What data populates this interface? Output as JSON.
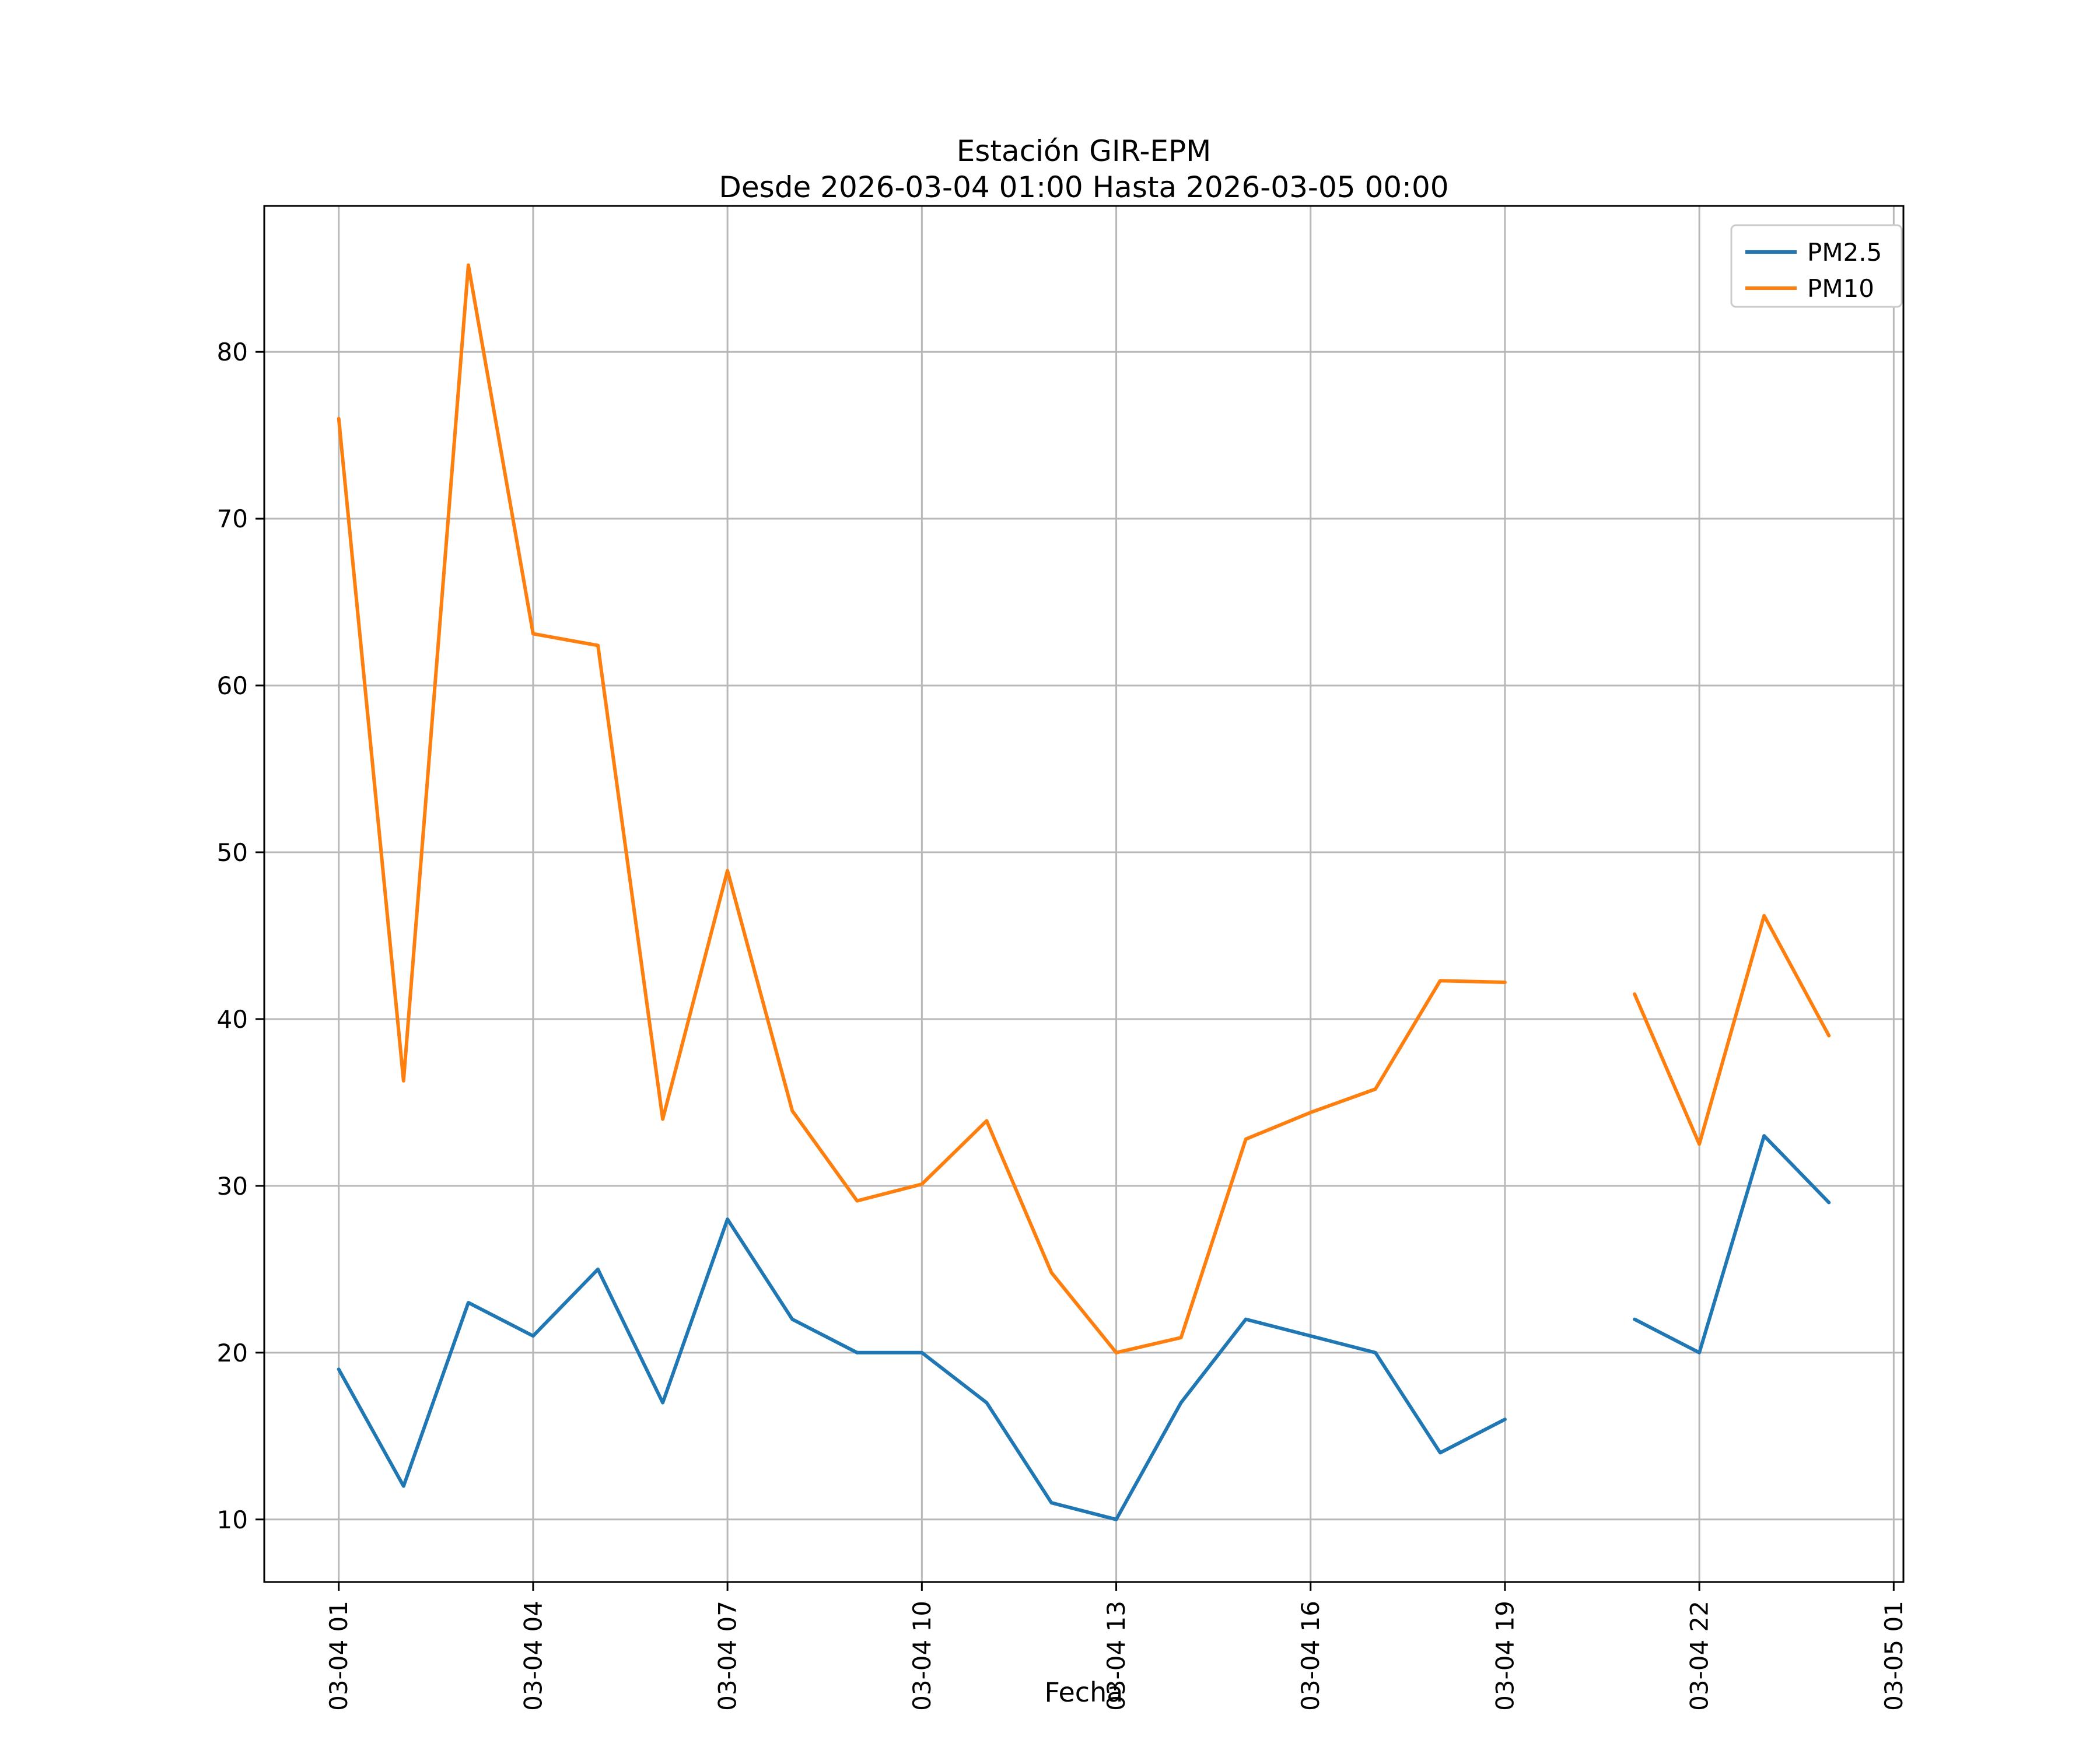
{
  "chart_data": {
    "type": "line",
    "title": "Estación GIR-EPM",
    "subtitle": "Desde 2026-03-04 01:00 Hasta 2026-03-05 00:00",
    "xlabel": "Fecha",
    "ylabel": "",
    "x_hours": [
      1,
      2,
      3,
      4,
      5,
      6,
      7,
      8,
      9,
      10,
      11,
      12,
      13,
      14,
      15,
      16,
      17,
      18,
      19,
      20,
      21,
      22,
      23,
      24
    ],
    "series": [
      {
        "name": "PM2.5",
        "color": "#1f77b4",
        "values": [
          19,
          12,
          23,
          21,
          25,
          17,
          28,
          22,
          20,
          20,
          17,
          11,
          10,
          17,
          22,
          21,
          20,
          14,
          16,
          null,
          22,
          20,
          33,
          29
        ]
      },
      {
        "name": "PM10",
        "color": "#ff7f0e",
        "values": [
          76,
          36.3,
          85.2,
          63.1,
          62.4,
          34,
          48.9,
          34.5,
          29.1,
          30.1,
          33.9,
          24.8,
          20,
          20.9,
          32.8,
          34.4,
          35.8,
          42.3,
          42.2,
          null,
          41.5,
          32.5,
          46.2,
          39
        ]
      }
    ],
    "xlim": [
      -0.15,
      25.15
    ],
    "ylim": [
      6.25,
      88.75
    ],
    "xticks": [
      {
        "value": 1,
        "label": "03-04 01"
      },
      {
        "value": 4,
        "label": "03-04 04"
      },
      {
        "value": 7,
        "label": "03-04 07"
      },
      {
        "value": 10,
        "label": "03-04 10"
      },
      {
        "value": 13,
        "label": "03-04 13"
      },
      {
        "value": 16,
        "label": "03-04 16"
      },
      {
        "value": 19,
        "label": "03-04 19"
      },
      {
        "value": 22,
        "label": "03-04 22"
      },
      {
        "value": 25,
        "label": "03-05 01"
      }
    ],
    "yticks": [
      10,
      20,
      30,
      40,
      50,
      60,
      70,
      80
    ],
    "grid": true,
    "legend_position": "upper right",
    "legend_labels": [
      "PM2.5",
      "PM10"
    ],
    "colors": {
      "grid": "#b8b8b8",
      "axes": "#000000",
      "background": "#ffffff",
      "legend_border": "#cccccc"
    }
  }
}
